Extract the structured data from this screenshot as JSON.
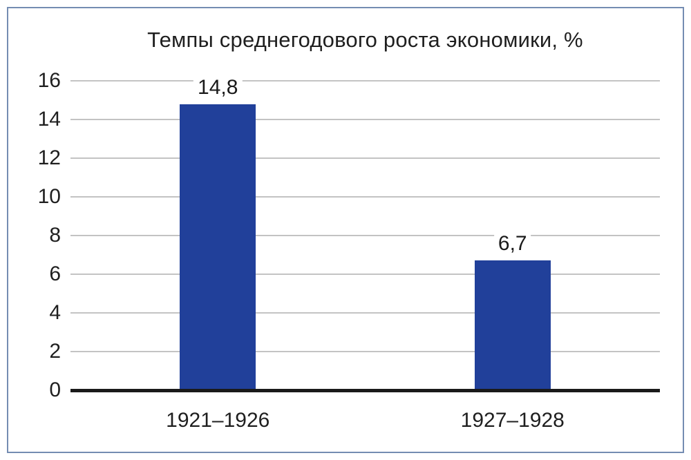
{
  "chart_data": {
    "type": "bar",
    "title": "Темпы среднегодового роста экономики, %",
    "categories": [
      "1921–1926",
      "1927–1928"
    ],
    "values": [
      14.8,
      6.7
    ],
    "value_labels": [
      "14,8",
      "6,7"
    ],
    "xlabel": "",
    "ylabel": "",
    "ylim": [
      0,
      16
    ],
    "y_ticks": [
      0,
      2,
      4,
      6,
      8,
      10,
      12,
      14,
      16
    ],
    "grid": true,
    "legend_position": "none",
    "colors": {
      "bar": "#21409a",
      "gridline": "#c3c3c3",
      "axis_line": "#1a1a1a",
      "text": "#1f1f1f",
      "frame_border": "#748cb2",
      "background": "#ffffff"
    }
  }
}
